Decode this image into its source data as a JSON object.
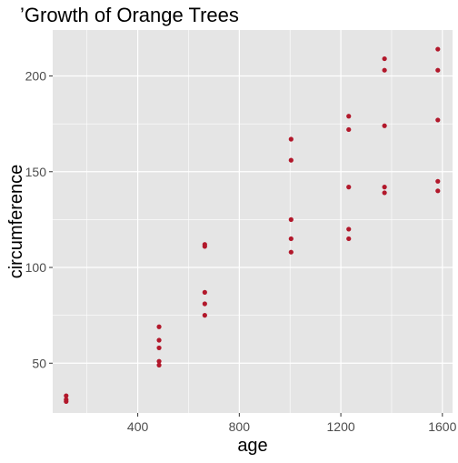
{
  "chart_data": {
    "type": "scatter",
    "title": "’Growth of Orange Trees",
    "xlabel": "age",
    "ylabel": "circumference",
    "xlim": [
      65,
      1640
    ],
    "ylim": [
      24,
      224
    ],
    "x_ticks": [
      400,
      800,
      1200,
      1600
    ],
    "y_ticks": [
      50,
      100,
      150,
      200
    ],
    "x_tick_labels": [
      "400",
      "800",
      "1200",
      "1600"
    ],
    "y_tick_labels": [
      "50",
      "100",
      "150",
      "200"
    ],
    "grid": true,
    "panel_background": "#e5e5e5",
    "grid_color": "#ffffff",
    "point_color": "#b2182b",
    "x": [
      118,
      118,
      118,
      484,
      484,
      484,
      484,
      484,
      664,
      664,
      664,
      664,
      664,
      1004,
      1004,
      1004,
      1004,
      1004,
      1231,
      1231,
      1231,
      1231,
      1231,
      1372,
      1372,
      1372,
      1372,
      1372,
      1582,
      1582,
      1582,
      1582,
      1582
    ],
    "y": [
      30,
      31,
      33,
      49,
      51,
      58,
      62,
      69,
      75,
      81,
      87,
      111,
      112,
      108,
      115,
      125,
      156,
      167,
      115,
      120,
      142,
      172,
      179,
      139,
      142,
      174,
      203,
      209,
      140,
      145,
      177,
      203,
      214
    ]
  }
}
